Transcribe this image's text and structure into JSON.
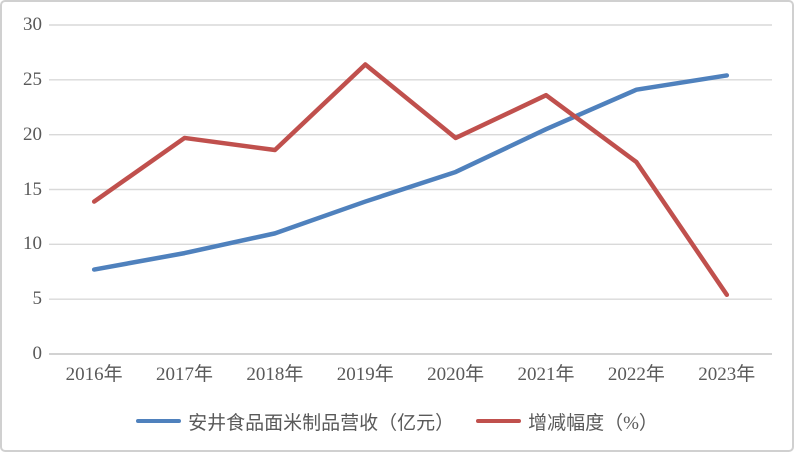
{
  "chart_data": {
    "type": "line",
    "categories": [
      "2016年",
      "2017年",
      "2018年",
      "2019年",
      "2020年",
      "2021年",
      "2022年",
      "2023年"
    ],
    "series": [
      {
        "name": "安井食品面米制品营收（亿元）",
        "color": "#4F81BD",
        "values": [
          7.7,
          9.2,
          11.0,
          13.9,
          16.6,
          20.5,
          24.1,
          25.4
        ]
      },
      {
        "name": "增减幅度（%）",
        "color": "#C0504D",
        "values": [
          13.9,
          19.7,
          18.6,
          26.4,
          19.7,
          23.6,
          17.5,
          5.4
        ]
      }
    ],
    "title": "",
    "xlabel": "",
    "ylabel": "",
    "ylim": [
      0,
      30
    ],
    "yticks": [
      0,
      5,
      10,
      15,
      20,
      25,
      30
    ],
    "grid": "horizontal",
    "legend_position": "bottom"
  },
  "colors": {
    "gridline": "#D9D9D9",
    "axis_line": "#C3C3C3",
    "tick_text": "#595959",
    "frame_border": "#D0D0D0"
  }
}
